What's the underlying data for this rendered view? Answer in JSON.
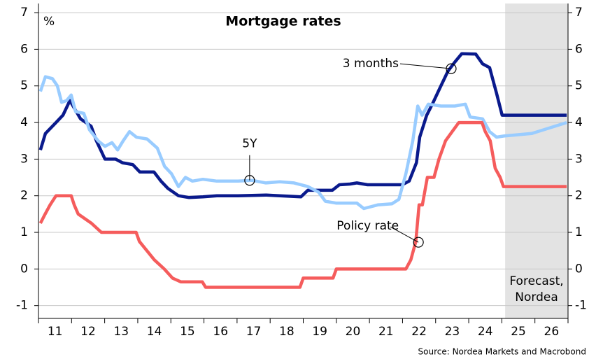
{
  "chart_data": {
    "type": "line",
    "title": "Mortgage rates",
    "y_unit_left": "%",
    "y_unit_right": "%",
    "source": "Source: Nordea Markets and Macrobond",
    "forecast_start": 2025.1,
    "forecast_label": [
      "Forecast,",
      "Nordea"
    ],
    "xlim": [
      2011,
      2027
    ],
    "xticks": [
      {
        "value": 2011.5,
        "label": "11"
      },
      {
        "value": 2012.5,
        "label": "12"
      },
      {
        "value": 2013.5,
        "label": "13"
      },
      {
        "value": 2014.5,
        "label": "14"
      },
      {
        "value": 2015.5,
        "label": "15"
      },
      {
        "value": 2016.5,
        "label": "16"
      },
      {
        "value": 2017.5,
        "label": "17"
      },
      {
        "value": 2018.5,
        "label": "18"
      },
      {
        "value": 2019.5,
        "label": "19"
      },
      {
        "value": 2020.5,
        "label": "20"
      },
      {
        "value": 2021.5,
        "label": "21"
      },
      {
        "value": 2022.5,
        "label": "22"
      },
      {
        "value": 2023.5,
        "label": "23"
      },
      {
        "value": 2024.5,
        "label": "24"
      },
      {
        "value": 2025.5,
        "label": "25"
      },
      {
        "value": 2026.5,
        "label": "26"
      }
    ],
    "xminor_ticks": [
      2011,
      2012,
      2013,
      2014,
      2015,
      2016,
      2017,
      2018,
      2019,
      2020,
      2021,
      2022,
      2023,
      2024,
      2025,
      2026,
      2027
    ],
    "ylim": [
      -1.35,
      7.25
    ],
    "yticks": [
      -1,
      0,
      1,
      2,
      3,
      4,
      5,
      6,
      7
    ],
    "y2lim": [
      -1.35,
      7.25
    ],
    "y2ticks": [
      -1,
      0,
      1,
      2,
      3,
      4,
      5,
      6,
      7
    ],
    "grid": true,
    "series": [
      {
        "name": "3 months",
        "color": "#0a1a8c",
        "x": [
          2011.06,
          2011.21,
          2011.53,
          2011.74,
          2011.95,
          2012.27,
          2012.59,
          2012.75,
          2013.01,
          2013.33,
          2013.54,
          2013.85,
          2014.06,
          2014.49,
          2014.7,
          2014.91,
          2015.23,
          2015.55,
          2015.97,
          2016.39,
          2017.03,
          2017.87,
          2018.29,
          2018.93,
          2019.14,
          2019.88,
          2020.09,
          2020.41,
          2020.62,
          2020.94,
          2021.99,
          2022.2,
          2022.42,
          2022.52,
          2022.73,
          2022.9,
          2023.16,
          2023.37,
          2023.58,
          2023.79,
          2024.21,
          2024.42,
          2024.63,
          2024.84,
          2025.01,
          2026.96
        ],
        "values": [
          3.25,
          3.7,
          4.0,
          4.2,
          4.6,
          4.1,
          3.9,
          3.5,
          3.0,
          3.0,
          2.9,
          2.85,
          2.65,
          2.65,
          2.4,
          2.2,
          2.0,
          1.95,
          1.97,
          2.0,
          2.0,
          2.02,
          2.0,
          1.97,
          2.15,
          2.15,
          2.3,
          2.32,
          2.35,
          2.3,
          2.3,
          2.4,
          2.9,
          3.6,
          4.2,
          4.5,
          5.0,
          5.4,
          5.65,
          5.88,
          5.87,
          5.6,
          5.5,
          4.8,
          4.2,
          4.2
        ]
      },
      {
        "name": "5Y",
        "color": "#99ccff",
        "x": [
          2011.06,
          2011.21,
          2011.42,
          2011.57,
          2011.7,
          2011.85,
          2011.99,
          2012.12,
          2012.37,
          2012.54,
          2012.8,
          2013.01,
          2013.22,
          2013.39,
          2013.56,
          2013.75,
          2013.96,
          2014.28,
          2014.59,
          2014.81,
          2015.02,
          2015.23,
          2015.44,
          2015.65,
          2015.97,
          2016.39,
          2017.03,
          2017.45,
          2017.87,
          2018.29,
          2018.72,
          2019.14,
          2019.46,
          2019.67,
          2019.99,
          2020.62,
          2020.83,
          2021.25,
          2021.68,
          2021.89,
          2022.1,
          2022.31,
          2022.46,
          2022.59,
          2022.78,
          2023.16,
          2023.58,
          2023.9,
          2024.04,
          2024.42,
          2024.63,
          2024.84,
          2025.06,
          2025.9,
          2026.96
        ],
        "values": [
          4.85,
          5.25,
          5.2,
          5.0,
          4.55,
          4.6,
          4.75,
          4.3,
          4.25,
          3.8,
          3.5,
          3.35,
          3.45,
          3.25,
          3.5,
          3.75,
          3.6,
          3.55,
          3.3,
          2.8,
          2.6,
          2.25,
          2.5,
          2.4,
          2.45,
          2.4,
          2.4,
          2.42,
          2.35,
          2.38,
          2.35,
          2.25,
          2.1,
          1.85,
          1.8,
          1.8,
          1.65,
          1.75,
          1.78,
          1.9,
          2.6,
          3.5,
          4.45,
          4.2,
          4.5,
          4.45,
          4.45,
          4.5,
          4.15,
          4.1,
          3.75,
          3.6,
          3.63,
          3.7,
          4.0
        ]
      },
      {
        "name": "Policy rate",
        "color": "#f55c5c",
        "x": [
          2011.06,
          2011.2,
          2011.35,
          2011.53,
          2011.99,
          2012.08,
          2012.2,
          2012.6,
          2012.9,
          2013.95,
          2014.05,
          2014.5,
          2014.8,
          2015.05,
          2015.3,
          2015.95,
          2016.05,
          2018.9,
          2019.0,
          2019.9,
          2020.0,
          2022.1,
          2022.25,
          2022.4,
          2022.5,
          2022.6,
          2022.75,
          2022.95,
          2023.1,
          2023.3,
          2023.5,
          2023.7,
          2024.4,
          2024.5,
          2024.65,
          2024.8,
          2024.95,
          2025.05,
          2026.96
        ],
        "values": [
          1.25,
          1.5,
          1.75,
          2.0,
          2.0,
          1.75,
          1.5,
          1.25,
          1.0,
          1.0,
          0.75,
          0.25,
          0.0,
          -0.25,
          -0.35,
          -0.35,
          -0.5,
          -0.5,
          -0.25,
          -0.25,
          0.0,
          0.0,
          0.25,
          0.75,
          1.75,
          1.75,
          2.5,
          2.5,
          3.0,
          3.5,
          3.75,
          4.0,
          4.0,
          3.75,
          3.5,
          2.75,
          2.5,
          2.25,
          2.25
        ]
      }
    ],
    "annotations": [
      {
        "series": 0,
        "x": 2023.47,
        "y": 5.47
      },
      {
        "series": 1,
        "x": 2017.38,
        "y": 2.42
      },
      {
        "series": 2,
        "x": 2022.48,
        "y": 0.73
      }
    ]
  }
}
